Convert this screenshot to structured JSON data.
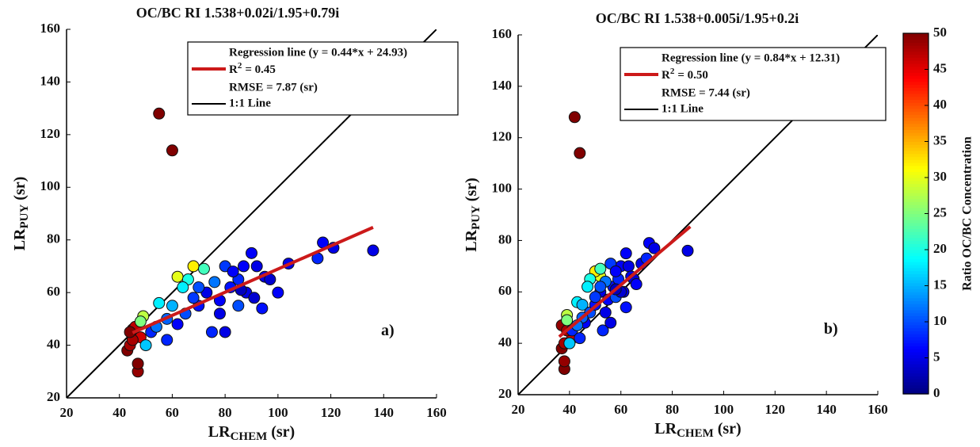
{
  "chart_data": [
    {
      "type": "scatter",
      "title": "OC/BC RI 1.538+0.02i/1.95+0.79i",
      "x_label": "LR",
      "x_label_sub": "CHEM",
      "x_label_unit": "(sr)",
      "y_label": "LR",
      "y_label_sub": "PUY",
      "y_label_unit": "(sr)",
      "xlim": [
        20,
        160
      ],
      "ylim": [
        20,
        160
      ],
      "xticks": [
        20,
        40,
        60,
        80,
        100,
        120,
        140,
        160
      ],
      "yticks": [
        20,
        40,
        60,
        80,
        100,
        120,
        140,
        160
      ],
      "legend": "upper right",
      "annotation": "a)",
      "points": {
        "x": [
          43,
          44,
          45,
          46,
          47,
          47,
          48,
          55,
          60,
          45,
          44,
          49,
          48,
          62,
          68,
          72,
          66,
          55,
          50,
          60,
          64,
          52,
          58,
          62,
          65,
          70,
          73,
          75,
          78,
          80,
          82,
          85,
          87,
          88,
          90,
          92,
          94,
          95,
          97,
          100,
          104,
          115,
          117,
          121,
          136,
          85,
          80,
          76,
          70,
          68,
          58,
          54,
          83,
          91,
          86,
          78
        ],
        "y": [
          38,
          40,
          46,
          47,
          30,
          33,
          43,
          128,
          114,
          42,
          45,
          51,
          49,
          66,
          70,
          69,
          65,
          56,
          40,
          55,
          62,
          45,
          42,
          48,
          52,
          55,
          60,
          45,
          57,
          45,
          62,
          65,
          70,
          60,
          75,
          70,
          54,
          66,
          65,
          60,
          71,
          73,
          79,
          77,
          76,
          55,
          70,
          64,
          62,
          58,
          50,
          47,
          68,
          58,
          61,
          52
        ],
        "c": [
          50,
          48,
          50,
          47,
          49,
          50,
          46,
          50,
          50,
          48,
          50,
          28,
          25,
          30,
          32,
          22,
          20,
          18,
          16,
          15,
          18,
          8,
          8,
          6,
          10,
          7,
          5,
          8,
          6,
          5,
          7,
          8,
          6,
          5,
          6,
          5,
          7,
          5,
          4,
          6,
          5,
          8,
          6,
          5,
          5,
          10,
          9,
          12,
          10,
          9,
          11,
          12,
          6,
          4,
          3,
          5
        ]
      },
      "lines": [
        {
          "name": "Regression line (y = 0.44*x + 24.93)",
          "color": "#cc1a1a",
          "x": [
            45,
            136
          ],
          "y": [
            44.73,
            84.77
          ]
        },
        {
          "name": "1:1 Line",
          "color": "#000000",
          "x": [
            20,
            160
          ],
          "y": [
            20,
            160
          ]
        }
      ],
      "r2": {
        "base": "R",
        "sup": "2",
        "text": "= 0.45"
      },
      "rmse": "RMSE = 7.87 (sr)"
    },
    {
      "type": "scatter",
      "title": "OC/BC RI 1.538+0.005i/1.95+0.2i",
      "x_label": "LR",
      "x_label_sub": "CHEM",
      "x_label_unit": "(sr)",
      "y_label": "LR",
      "y_label_sub": "PUY",
      "y_label_unit": "(sr)",
      "xlim": [
        20,
        160
      ],
      "ylim": [
        20,
        160
      ],
      "xticks": [
        20,
        40,
        60,
        80,
        100,
        120,
        140,
        160
      ],
      "yticks": [
        20,
        40,
        60,
        80,
        100,
        120,
        140,
        160
      ],
      "legend": "upper right",
      "annotation": "b)",
      "points": {
        "x": [
          37,
          38,
          37,
          38,
          38,
          41,
          42,
          44,
          39,
          39,
          39,
          52,
          50,
          52,
          48,
          43,
          40,
          45,
          47,
          41,
          44,
          46,
          48,
          50,
          52,
          53,
          55,
          56,
          57,
          59,
          60,
          61,
          62,
          63,
          62,
          64,
          65,
          66,
          68,
          70,
          71,
          73,
          86,
          58,
          56,
          54,
          52,
          50,
          45,
          43,
          58,
          60,
          58,
          54
        ],
        "y": [
          38,
          40,
          47,
          30,
          33,
          42,
          128,
          114,
          45,
          51,
          49,
          66,
          68,
          69,
          65,
          56,
          40,
          55,
          62,
          45,
          42,
          48,
          52,
          55,
          60,
          45,
          57,
          48,
          62,
          65,
          70,
          60,
          75,
          70,
          54,
          66,
          65,
          63,
          71,
          73,
          79,
          77,
          76,
          58,
          71,
          64,
          62,
          58,
          50,
          47,
          68,
          60,
          61,
          52
        ],
        "c": [
          50,
          48,
          49,
          50,
          49,
          46,
          50,
          50,
          48,
          28,
          25,
          30,
          32,
          22,
          20,
          18,
          16,
          15,
          18,
          8,
          8,
          6,
          10,
          7,
          5,
          8,
          6,
          5,
          7,
          8,
          6,
          5,
          6,
          5,
          7,
          5,
          4,
          6,
          5,
          8,
          6,
          5,
          5,
          10,
          9,
          12,
          10,
          9,
          11,
          12,
          6,
          4,
          3,
          5
        ]
      },
      "lines": [
        {
          "name": "Regression line (y = 0.84*x + 12.31)",
          "color": "#cc1a1a",
          "x": [
            36,
            87
          ],
          "y": [
            42.55,
            85.39
          ]
        },
        {
          "name": "1:1 Line",
          "color": "#000000",
          "x": [
            20,
            160
          ],
          "y": [
            20,
            160
          ]
        }
      ],
      "r2": {
        "base": "R",
        "sup": "2",
        "text": "= 0.50"
      },
      "rmse": "RMSE = 7.44 (sr)"
    }
  ],
  "colorbar": {
    "label": "Ratio OC/BC Concentration",
    "colormap": "jet",
    "clim": [
      0,
      50
    ],
    "ticks": [
      0,
      5,
      10,
      15,
      20,
      25,
      30,
      35,
      40,
      45,
      50
    ]
  }
}
